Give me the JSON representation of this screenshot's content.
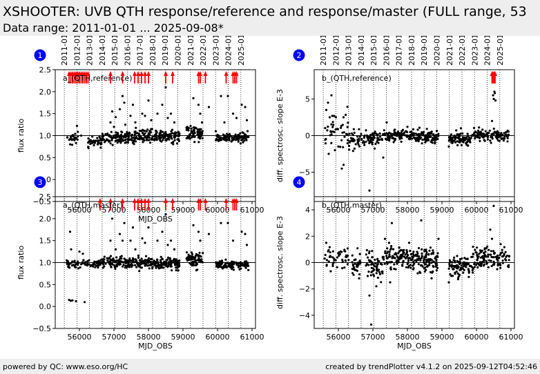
{
  "header": {
    "title": "XSHOOTER: UVB QTH response/reference and response/master (FULL range, 53",
    "subtitle": "Data range: 2011-01-01 ... 2025-09-08*"
  },
  "footer": {
    "left": "powered by QC: www.eso.org/HC",
    "right": "created by trendPlotter v4.1.2 on 2025-09-12T04:52:46"
  },
  "colors": {
    "points": "#000000",
    "outliers": "#ff0000",
    "badge": "#0000ff"
  },
  "year_markers": {
    "labels": [
      "2011-01-01",
      "2012-01-01",
      "2013-01-01",
      "2014-01-01",
      "2015-01-01",
      "2016-01-01",
      "2017-01-01",
      "2018-01-01",
      "2019-01-01",
      "2020-01-01",
      "2021-01-01",
      "2022-01-01",
      "2023-01-01",
      "2024-01-01",
      "2025-01-01"
    ],
    "mjd": [
      55562,
      55927,
      56293,
      56658,
      57023,
      57388,
      57754,
      58119,
      58484,
      58849,
      59215,
      59580,
      59945,
      60310,
      60676
    ]
  },
  "chart_data": [
    {
      "type": "scatter",
      "badge": "1",
      "annotation": "a_(QTH,reference)",
      "xlabel": "MJD_OBS",
      "ylabel": "flux ratio",
      "xlim": [
        55300,
        61100
      ],
      "ylim": [
        -0.5,
        2.5
      ],
      "xticks": [
        56000,
        57000,
        58000,
        59000,
        60000,
        61000
      ],
      "yticks": [
        -0.5,
        0.0,
        0.5,
        1.0,
        1.5,
        2.0,
        2.5
      ],
      "ytick_labels": [
        "−0.5",
        "0.0",
        "0.5",
        "1.0",
        "1.5",
        "2.0",
        "2.5"
      ],
      "reference_line": 1.0,
      "clusters": [
        {
          "x": [
            55650,
            55980
          ],
          "y": 0.95,
          "spread": 0.05,
          "n": 25
        },
        {
          "x": [
            56250,
            56650
          ],
          "y": 0.85,
          "spread": 0.05,
          "n": 40
        },
        {
          "x": [
            56650,
            57300
          ],
          "y": 0.95,
          "spread": 0.06,
          "n": 70
        },
        {
          "x": [
            57300,
            58100
          ],
          "y": 0.98,
          "spread": 0.07,
          "n": 110
        },
        {
          "x": [
            58100,
            58900
          ],
          "y": 0.98,
          "spread": 0.07,
          "n": 110
        },
        {
          "x": [
            59100,
            59580
          ],
          "y": 1.05,
          "spread": 0.08,
          "n": 70
        },
        {
          "x": [
            59950,
            60900
          ],
          "y": 0.95,
          "spread": 0.05,
          "n": 120
        }
      ],
      "scattered_points": [
        [
          55730,
          0.8
        ],
        [
          55790,
          0.79
        ],
        [
          55760,
          0.98
        ],
        [
          55930,
          1.22
        ],
        [
          56050,
          1.0
        ],
        [
          56420,
          0.78
        ],
        [
          56530,
          0.8
        ],
        [
          56900,
          1.3
        ],
        [
          56950,
          1.55
        ],
        [
          57000,
          1.2
        ],
        [
          57050,
          1.42
        ],
        [
          57170,
          1.6
        ],
        [
          57250,
          1.9
        ],
        [
          57300,
          1.75
        ],
        [
          57330,
          1.25
        ],
        [
          57480,
          1.45
        ],
        [
          57550,
          1.7
        ],
        [
          57620,
          1.3
        ],
        [
          57820,
          1.5
        ],
        [
          57900,
          1.45
        ],
        [
          58000,
          1.8
        ],
        [
          58080,
          1.35
        ],
        [
          58260,
          1.5
        ],
        [
          58400,
          1.7
        ],
        [
          58500,
          2.1
        ],
        [
          58560,
          1.4
        ],
        [
          58650,
          1.5
        ],
        [
          58750,
          1.3
        ],
        [
          58900,
          1.05
        ],
        [
          59300,
          1.85
        ],
        [
          59450,
          1.7
        ],
        [
          59500,
          1.5
        ],
        [
          59550,
          1.3
        ],
        [
          59750,
          1.65
        ],
        [
          59950,
          1.1
        ],
        [
          60100,
          1.9
        ],
        [
          60200,
          1.3
        ],
        [
          60300,
          1.9
        ],
        [
          60450,
          1.5
        ],
        [
          60550,
          1.4
        ],
        [
          60700,
          1.7
        ],
        [
          60800,
          1.65
        ],
        [
          60850,
          1.35
        ],
        [
          60870,
          1.1
        ]
      ],
      "outlier_arrows": [
        55700,
        55750,
        55800,
        55850,
        55900,
        55950,
        56000,
        56050,
        56100,
        56150,
        56200,
        56250,
        56900,
        57250,
        57600,
        57700,
        57800,
        57900,
        58000,
        58500,
        58700,
        59450,
        59500,
        59650,
        60250,
        60450,
        60500,
        60550
      ]
    },
    {
      "type": "scatter",
      "badge": "2",
      "annotation": "b_(QTH,reference)",
      "xlabel": "",
      "ylabel": "diff. spectrosc. slope E-3",
      "xlim": [
        55300,
        61100
      ],
      "ylim": [
        -9,
        9
      ],
      "xticks": [
        56000,
        57000,
        58000,
        59000,
        60000,
        61000
      ],
      "yticks": [
        -5,
        0,
        5
      ],
      "ytick_labels": [
        "−5",
        "0",
        "5"
      ],
      "reference_line": 0,
      "clusters": [
        {
          "x": [
            55600,
            56300
          ],
          "y": 0.8,
          "spread": 1.2,
          "n": 40
        },
        {
          "x": [
            56300,
            56650
          ],
          "y": -0.5,
          "spread": 0.6,
          "n": 35
        },
        {
          "x": [
            56650,
            57200
          ],
          "y": -0.4,
          "spread": 0.5,
          "n": 60
        },
        {
          "x": [
            57200,
            58150
          ],
          "y": 0.0,
          "spread": 0.4,
          "n": 110
        },
        {
          "x": [
            58150,
            58900
          ],
          "y": -0.2,
          "spread": 0.4,
          "n": 110
        },
        {
          "x": [
            59200,
            59900
          ],
          "y": -0.5,
          "spread": 0.4,
          "n": 90
        },
        {
          "x": [
            59900,
            60950
          ],
          "y": 0.0,
          "spread": 0.4,
          "n": 120
        }
      ],
      "scattered_points": [
        [
          55650,
          3.5
        ],
        [
          55700,
          4.5
        ],
        [
          55800,
          5.5
        ],
        [
          55750,
          2.5
        ],
        [
          55720,
          -2.5
        ],
        [
          55900,
          -2.0
        ],
        [
          56000,
          -1.5
        ],
        [
          56100,
          -4.5
        ],
        [
          56150,
          -4.0
        ],
        [
          56150,
          2.5
        ],
        [
          56900,
          -7.5
        ],
        [
          57400,
          1.8
        ],
        [
          57300,
          -3.0
        ],
        [
          58000,
          1.2
        ],
        [
          58300,
          0.8
        ],
        [
          59200,
          -1.5
        ],
        [
          59550,
          1.0
        ],
        [
          60450,
          2.0
        ],
        [
          60480,
          5.5
        ],
        [
          60500,
          5.0
        ],
        [
          60520,
          6.0
        ],
        [
          60550,
          4.8
        ],
        [
          60530,
          5.8
        ]
      ],
      "outlier_arrows": [
        60450,
        60480,
        60510,
        60540
      ]
    },
    {
      "type": "scatter",
      "badge": "3",
      "annotation": "a_(QTH,master)",
      "xlabel": "MJD_OBS",
      "ylabel": "flux ratio",
      "xlim": [
        55300,
        61100
      ],
      "ylim": [
        -0.5,
        2.5
      ],
      "xticks": [
        56000,
        57000,
        58000,
        59000,
        60000,
        61000
      ],
      "yticks": [
        -0.5,
        0.0,
        0.5,
        1.0,
        1.5,
        2.0,
        2.5
      ],
      "ytick_labels": [
        "−0.5",
        "0.0",
        "0.5",
        "1.0",
        "1.5",
        "2.0",
        "2.5"
      ],
      "reference_line": 1.0,
      "clusters": [
        {
          "x": [
            55620,
            56300
          ],
          "y": 0.97,
          "spread": 0.04,
          "n": 50
        },
        {
          "x": [
            56300,
            56700
          ],
          "y": 0.98,
          "spread": 0.05,
          "n": 40
        },
        {
          "x": [
            56700,
            57300
          ],
          "y": 1.03,
          "spread": 0.07,
          "n": 70
        },
        {
          "x": [
            57300,
            58100
          ],
          "y": 1.0,
          "spread": 0.07,
          "n": 110
        },
        {
          "x": [
            58100,
            58900
          ],
          "y": 0.98,
          "spread": 0.07,
          "n": 110
        },
        {
          "x": [
            59100,
            59580
          ],
          "y": 1.05,
          "spread": 0.08,
          "n": 70
        },
        {
          "x": [
            59950,
            60900
          ],
          "y": 0.96,
          "spread": 0.05,
          "n": 120
        }
      ],
      "scattered_points": [
        [
          55700,
          0.15
        ],
        [
          55750,
          0.13
        ],
        [
          55800,
          0.14
        ],
        [
          55900,
          0.12
        ],
        [
          56150,
          0.1
        ],
        [
          55730,
          1.7
        ],
        [
          55760,
          1.3
        ],
        [
          56000,
          1.25
        ],
        [
          56100,
          1.2
        ],
        [
          56900,
          1.5
        ],
        [
          56950,
          2.0
        ],
        [
          57050,
          1.3
        ],
        [
          57170,
          1.65
        ],
        [
          57250,
          1.5
        ],
        [
          57300,
          1.9
        ],
        [
          57480,
          1.5
        ],
        [
          57550,
          1.8
        ],
        [
          57620,
          1.3
        ],
        [
          57820,
          1.55
        ],
        [
          57900,
          1.45
        ],
        [
          58000,
          1.8
        ],
        [
          58260,
          1.5
        ],
        [
          58400,
          1.7
        ],
        [
          58500,
          2.1
        ],
        [
          58560,
          1.4
        ],
        [
          58650,
          1.5
        ],
        [
          58750,
          1.3
        ],
        [
          59300,
          1.85
        ],
        [
          59450,
          1.7
        ],
        [
          59500,
          1.5
        ],
        [
          59750,
          1.65
        ],
        [
          60100,
          1.9
        ],
        [
          60300,
          1.9
        ],
        [
          60450,
          1.5
        ],
        [
          60700,
          1.7
        ],
        [
          60800,
          1.65
        ],
        [
          60850,
          1.4
        ]
      ],
      "outlier_arrows": [
        56600,
        56900,
        57250,
        57600,
        57700,
        57800,
        57900,
        58000,
        58500,
        58700,
        59450,
        59500,
        59650,
        60250,
        60450,
        60500,
        60550
      ]
    },
    {
      "type": "scatter",
      "badge": "4",
      "annotation": "b_(QTH,master)",
      "xlabel": "MJD_OBS",
      "ylabel": "diff. spectrosc. slope E-3",
      "xlim": [
        55300,
        61100
      ],
      "ylim": [
        -5,
        5
      ],
      "xticks": [
        56000,
        57000,
        58000,
        59000,
        60000,
        61000
      ],
      "yticks": [
        -4,
        -2,
        0,
        2,
        4
      ],
      "ytick_labels": [
        "−4",
        "−2",
        "0",
        "2",
        "4"
      ],
      "reference_line": 0,
      "clusters": [
        {
          "x": [
            55600,
            56300
          ],
          "y": 0.4,
          "spread": 0.4,
          "n": 50
        },
        {
          "x": [
            56400,
            56650
          ],
          "y": -0.3,
          "spread": 0.5,
          "n": 30
        },
        {
          "x": [
            56800,
            57300
          ],
          "y": -0.3,
          "spread": 0.5,
          "n": 60
        },
        {
          "x": [
            57300,
            58150
          ],
          "y": 0.4,
          "spread": 0.4,
          "n": 110
        },
        {
          "x": [
            58150,
            58900
          ],
          "y": 0.2,
          "spread": 0.5,
          "n": 110
        },
        {
          "x": [
            59200,
            59900
          ],
          "y": -0.3,
          "spread": 0.4,
          "n": 90
        },
        {
          "x": [
            59900,
            60950
          ],
          "y": 0.4,
          "spread": 0.4,
          "n": 120
        }
      ],
      "scattered_points": [
        [
          55650,
          1.5
        ],
        [
          56600,
          -1.2
        ],
        [
          56900,
          -2.5
        ],
        [
          56950,
          -4.7
        ],
        [
          57100,
          -1.8
        ],
        [
          57350,
          1.8
        ],
        [
          57550,
          3.0
        ],
        [
          57500,
          -1.5
        ],
        [
          58050,
          1.5
        ],
        [
          58400,
          3.2
        ],
        [
          58900,
          1.8
        ],
        [
          58700,
          -1.2
        ],
        [
          59200,
          -1.5
        ],
        [
          59500,
          -1.0
        ],
        [
          59900,
          1.2
        ],
        [
          60400,
          2.5
        ],
        [
          60500,
          4.3
        ],
        [
          60450,
          1.8
        ],
        [
          60700,
          1.4
        ],
        [
          60600,
          -0.5
        ]
      ],
      "outlier_arrows": []
    }
  ]
}
